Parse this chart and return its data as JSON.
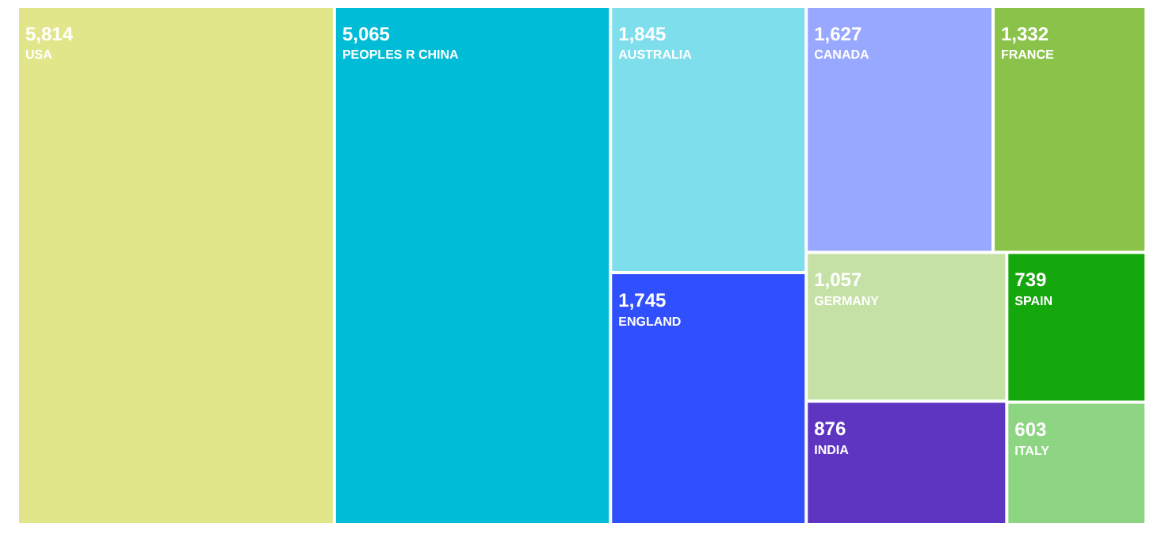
{
  "chart_data": {
    "type": "other",
    "categories": [
      "USA",
      "PEOPLES R CHINA",
      "AUSTRALIA",
      "ENGLAND",
      "CANADA",
      "FRANCE",
      "GERMANY",
      "INDIA",
      "SPAIN",
      "ITALY"
    ],
    "values": [
      5814,
      5065,
      1845,
      1745,
      1627,
      1332,
      1057,
      876,
      739,
      603
    ],
    "value_labels": [
      "5,814",
      "5,065",
      "1,845",
      "1,745",
      "1,627",
      "1,332",
      "1,057",
      "876",
      "739",
      "603"
    ],
    "colors": [
      "#e2e68a",
      "#00bcd6",
      "#7fdeeb",
      "#304ffe",
      "#98a8ff",
      "#8bc34a",
      "#c5e1a5",
      "#5e35c1",
      "#14a80c",
      "#8dd582"
    ]
  }
}
